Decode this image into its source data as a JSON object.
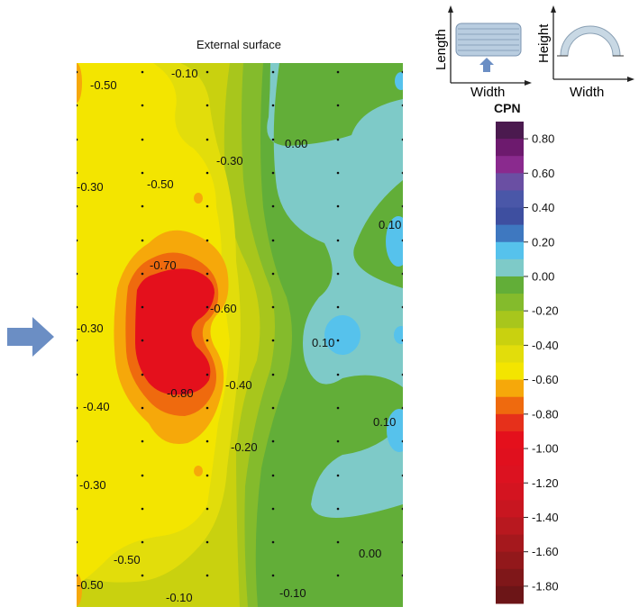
{
  "chart_data": {
    "type": "contour",
    "title": "External surface",
    "legend": {
      "title": "CPN",
      "placement": "right",
      "tick_labels": [
        "0.80",
        "0.60",
        "0.40",
        "0.20",
        "0.00",
        "-0.20",
        "-0.40",
        "-0.60",
        "-0.80",
        "-1.00",
        "-1.20",
        "-1.40",
        "-1.60",
        "-1.80"
      ],
      "bands": [
        {
          "from": 0.8,
          "to": 0.9,
          "color": "#4b1a4f"
        },
        {
          "from": 0.7,
          "to": 0.8,
          "color": "#6d1a6e"
        },
        {
          "from": 0.6,
          "to": 0.7,
          "color": "#8a2a8e"
        },
        {
          "from": 0.5,
          "to": 0.6,
          "color": "#6a4fa3"
        },
        {
          "from": 0.4,
          "to": 0.5,
          "color": "#4a57a8"
        },
        {
          "from": 0.3,
          "to": 0.4,
          "color": "#3e4fa0"
        },
        {
          "from": 0.2,
          "to": 0.3,
          "color": "#3e78c0"
        },
        {
          "from": 0.1,
          "to": 0.2,
          "color": "#56c2ec"
        },
        {
          "from": 0.0,
          "to": 0.1,
          "color": "#7ecac8"
        },
        {
          "from": -0.1,
          "to": 0.0,
          "color": "#62ae38"
        },
        {
          "from": -0.2,
          "to": -0.1,
          "color": "#84bb2c"
        },
        {
          "from": -0.3,
          "to": -0.2,
          "color": "#a8c61c"
        },
        {
          "from": -0.4,
          "to": -0.3,
          "color": "#c9d10f"
        },
        {
          "from": -0.5,
          "to": -0.4,
          "color": "#e2dd0b"
        },
        {
          "from": -0.6,
          "to": -0.5,
          "color": "#f3e500"
        },
        {
          "from": -0.7,
          "to": -0.6,
          "color": "#f6a80a"
        },
        {
          "from": -0.8,
          "to": -0.7,
          "color": "#ef6a0e"
        },
        {
          "from": -0.9,
          "to": -0.8,
          "color": "#e6301b"
        },
        {
          "from": -1.0,
          "to": -0.9,
          "color": "#e4101c"
        },
        {
          "from": -1.1,
          "to": -1.0,
          "color": "#e0101e"
        },
        {
          "from": -1.2,
          "to": -1.1,
          "color": "#dc1220"
        },
        {
          "from": -1.3,
          "to": -1.2,
          "color": "#d41420"
        },
        {
          "from": -1.4,
          "to": -1.3,
          "color": "#c81620"
        },
        {
          "from": -1.5,
          "to": -1.4,
          "color": "#b8181f"
        },
        {
          "from": -1.6,
          "to": -1.5,
          "color": "#a5181d"
        },
        {
          "from": -1.7,
          "to": -1.6,
          "color": "#92181b"
        },
        {
          "from": -1.8,
          "to": -1.7,
          "color": "#7f1719"
        },
        {
          "from": -1.9,
          "to": -1.8,
          "color": "#6c1517"
        }
      ]
    },
    "contour_labels": [
      "-0.10",
      "-0.50",
      "-0.30",
      "0.00",
      "-0.30",
      "-0.50",
      "0.10",
      "-0.70",
      "-0.60",
      "-0.30",
      "0.10",
      "-0.80",
      "-0.40",
      "-0.40",
      "0.10",
      "-0.20",
      "-0.30",
      "-0.50",
      "0.00",
      "-0.50",
      "-0.10",
      "-0.10"
    ]
  },
  "schematic": {
    "left": {
      "xlabel": "Width",
      "ylabel": "Length"
    },
    "right": {
      "xlabel": "Width",
      "ylabel": "Height"
    }
  },
  "wind_arrow_color": "#6b8ec4"
}
